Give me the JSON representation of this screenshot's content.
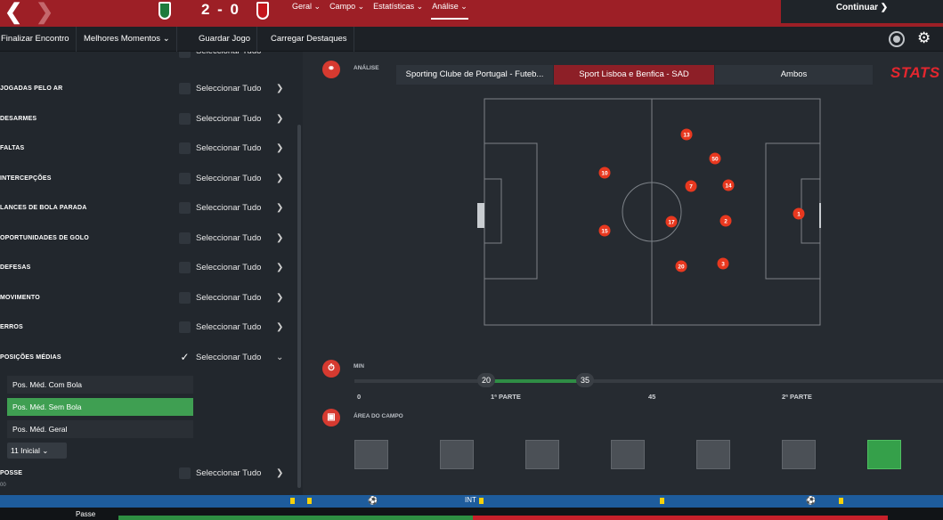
{
  "topbar": {
    "score": "2 - 0",
    "menu": [
      {
        "label": "Geral ⌄"
      },
      {
        "label": "Campo ⌄"
      },
      {
        "label": "Estatísticas ⌄"
      },
      {
        "label": "Análise ⌄"
      }
    ],
    "continue_label": "Continuar ❯"
  },
  "toolbar": {
    "buttons": [
      {
        "label": "Finalizar Encontro"
      },
      {
        "label": "Melhores Momentos ⌄"
      },
      {
        "label": "Guardar Jogo"
      },
      {
        "label": "Carregar Destaques"
      }
    ]
  },
  "sidebar": {
    "select_all": "Seleccionar Tudo",
    "categories": [
      {
        "label": "JOGADAS PELO AR"
      },
      {
        "label": "DESARMES"
      },
      {
        "label": "FALTAS"
      },
      {
        "label": "INTERCEPÇÕES"
      },
      {
        "label": "LANCES DE BOLA PARADA"
      },
      {
        "label": "OPORTUNIDADES DE GOLO"
      },
      {
        "label": "DEFESAS"
      },
      {
        "label": "MOVIMENTO"
      },
      {
        "label": "ERROS"
      },
      {
        "label": "POSIÇÕES MÉDIAS"
      }
    ],
    "sub_options": [
      {
        "label": "Pos. Méd. Com Bola"
      },
      {
        "label": "Pos. Méd. Sem Bola"
      },
      {
        "label": "Pos. Méd. Geral"
      }
    ],
    "lineup_select": "11 Inicial ⌄",
    "posse_label": "POSSE",
    "posse_value": "00"
  },
  "analysis": {
    "label": "ANÁLISE",
    "teams": [
      {
        "label": "Sporting Clube de Portugal - Futeb..."
      },
      {
        "label": "Sport Lisboa e Benfica - SAD"
      },
      {
        "label": "Ambos"
      }
    ],
    "stats_logo": "STATS"
  },
  "players": [
    {
      "number": "13"
    },
    {
      "number": "50"
    },
    {
      "number": "10"
    },
    {
      "number": "7"
    },
    {
      "number": "14"
    },
    {
      "number": "17"
    },
    {
      "number": "2"
    },
    {
      "number": "1"
    },
    {
      "number": "15"
    },
    {
      "number": "20"
    },
    {
      "number": "3"
    }
  ],
  "timeline": {
    "label": "MIN",
    "range_start": "20",
    "range_end": "35",
    "ticks": [
      {
        "label": "0"
      },
      {
        "label": "1ª PARTE"
      },
      {
        "label": "45"
      },
      {
        "label": "2ª PARTE"
      }
    ]
  },
  "area": {
    "label": "ÁREA DO CAMPO"
  },
  "bottom": {
    "int_label": "INT",
    "passe_label": "Passe"
  },
  "colors": {
    "accent_red": "#9d1f26",
    "player_marker": "#e8381f",
    "active_green": "#3f9f52"
  }
}
